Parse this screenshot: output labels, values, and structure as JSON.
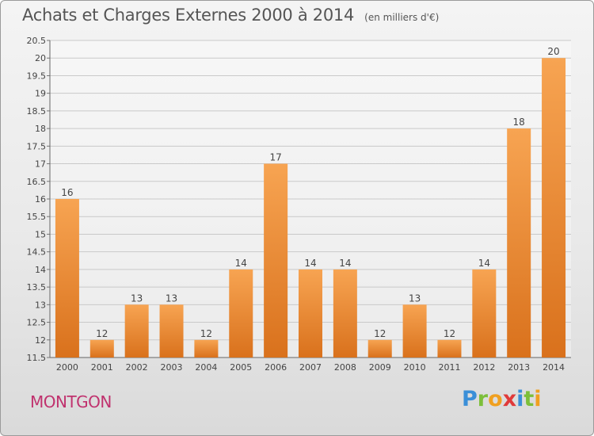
{
  "header": {
    "title": "Achats et Charges Externes 2000 à 2014",
    "unit": "(en milliers d'€)"
  },
  "footer": {
    "place": "MONTGON",
    "logo": "Proxiti"
  },
  "colors": {
    "bar_light": "#f7a452",
    "bar_dark": "#d9711c",
    "place": "#c0326e"
  },
  "chart_data": {
    "type": "bar",
    "title": "Achats et Charges Externes 2000 à 2014",
    "xlabel": "",
    "ylabel": "",
    "categories": [
      "2000",
      "2001",
      "2002",
      "2003",
      "2004",
      "2005",
      "2006",
      "2007",
      "2008",
      "2009",
      "2010",
      "2011",
      "2012",
      "2013",
      "2014"
    ],
    "values": [
      16,
      12,
      13,
      13,
      12,
      14,
      17,
      14,
      14,
      12,
      13,
      12,
      14,
      18,
      20
    ],
    "ylim": [
      11.5,
      20.5
    ],
    "yticks": [
      "11.5",
      "12",
      "12.5",
      "13",
      "13.5",
      "14",
      "14.5",
      "15",
      "15.5",
      "16",
      "16.5",
      "17",
      "17.5",
      "18",
      "18.5",
      "19",
      "19.5",
      "20",
      "20.5"
    ],
    "grid": true
  }
}
